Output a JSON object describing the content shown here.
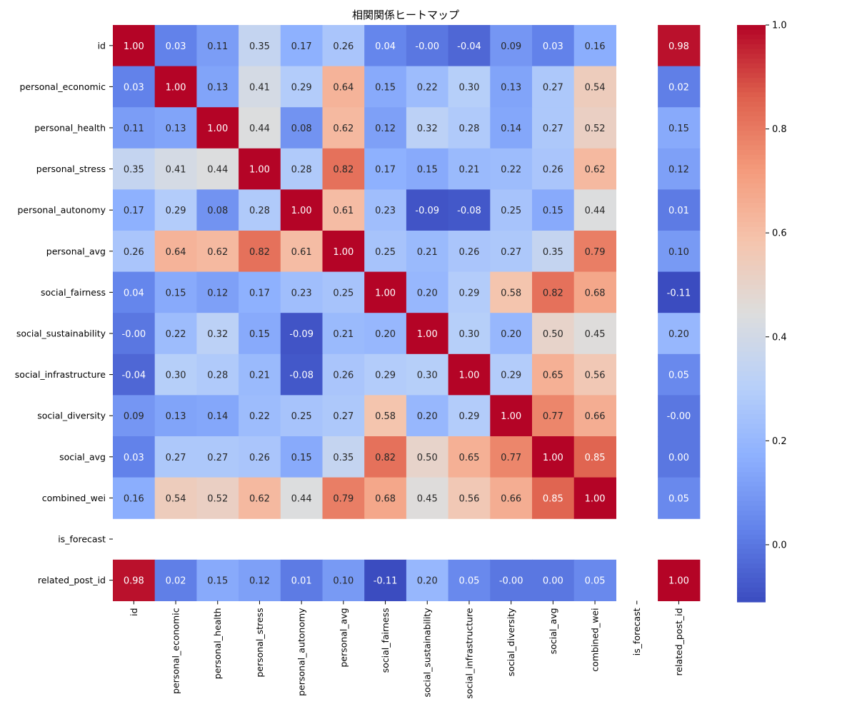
{
  "chart_data": {
    "type": "heatmap",
    "title": "相関関係ヒートマップ",
    "xlabel": "",
    "ylabel": "",
    "labels": [
      "id",
      "personal_economic",
      "personal_health",
      "personal_stress",
      "personal_autonomy",
      "personal_avg",
      "social_fairness",
      "social_sustainability",
      "social_infrastructure",
      "social_diversity",
      "social_avg",
      "combined_wei",
      "is_forecast",
      "related_post_id"
    ],
    "matrix": [
      [
        1.0,
        0.03,
        0.11,
        0.35,
        0.17,
        0.26,
        0.04,
        -0.0,
        -0.04,
        0.09,
        0.03,
        0.16,
        null,
        0.98
      ],
      [
        0.03,
        1.0,
        0.13,
        0.41,
        0.29,
        0.64,
        0.15,
        0.22,
        0.3,
        0.13,
        0.27,
        0.54,
        null,
        0.02
      ],
      [
        0.11,
        0.13,
        1.0,
        0.44,
        0.08,
        0.62,
        0.12,
        0.32,
        0.28,
        0.14,
        0.27,
        0.52,
        null,
        0.15
      ],
      [
        0.35,
        0.41,
        0.44,
        1.0,
        0.28,
        0.82,
        0.17,
        0.15,
        0.21,
        0.22,
        0.26,
        0.62,
        null,
        0.12
      ],
      [
        0.17,
        0.29,
        0.08,
        0.28,
        1.0,
        0.61,
        0.23,
        -0.09,
        -0.08,
        0.25,
        0.15,
        0.44,
        null,
        0.01
      ],
      [
        0.26,
        0.64,
        0.62,
        0.82,
        0.61,
        1.0,
        0.25,
        0.21,
        0.26,
        0.27,
        0.35,
        0.79,
        null,
        0.1
      ],
      [
        0.04,
        0.15,
        0.12,
        0.17,
        0.23,
        0.25,
        1.0,
        0.2,
        0.29,
        0.58,
        0.82,
        0.68,
        null,
        -0.11
      ],
      [
        -0.0,
        0.22,
        0.32,
        0.15,
        -0.09,
        0.21,
        0.2,
        1.0,
        0.3,
        0.2,
        0.5,
        0.45,
        null,
        0.2
      ],
      [
        -0.04,
        0.3,
        0.28,
        0.21,
        -0.08,
        0.26,
        0.29,
        0.3,
        1.0,
        0.29,
        0.65,
        0.56,
        null,
        0.05
      ],
      [
        0.09,
        0.13,
        0.14,
        0.22,
        0.25,
        0.27,
        0.58,
        0.2,
        0.29,
        1.0,
        0.77,
        0.66,
        null,
        -0.0
      ],
      [
        0.03,
        0.27,
        0.27,
        0.26,
        0.15,
        0.35,
        0.82,
        0.5,
        0.65,
        0.77,
        1.0,
        0.85,
        null,
        0.0
      ],
      [
        0.16,
        0.54,
        0.52,
        0.62,
        0.44,
        0.79,
        0.68,
        0.45,
        0.56,
        0.66,
        0.85,
        1.0,
        null,
        0.05
      ],
      [
        null,
        null,
        null,
        null,
        null,
        null,
        null,
        null,
        null,
        null,
        null,
        null,
        null,
        null
      ],
      [
        0.98,
        0.02,
        0.15,
        0.12,
        0.01,
        0.1,
        -0.11,
        0.2,
        0.05,
        -0.0,
        0.0,
        0.05,
        null,
        1.0
      ]
    ],
    "value_format": "0.00",
    "colormap": "coolwarm",
    "vmin": -0.11,
    "vmax": 1.0,
    "colorbar_ticks": [
      "0.0",
      "0.2",
      "0.4",
      "0.6",
      "0.8",
      "1.0"
    ],
    "colorbar_tick_values": [
      0.0,
      0.2,
      0.4,
      0.6,
      0.8,
      1.0
    ],
    "legend": "right",
    "grid": false
  }
}
